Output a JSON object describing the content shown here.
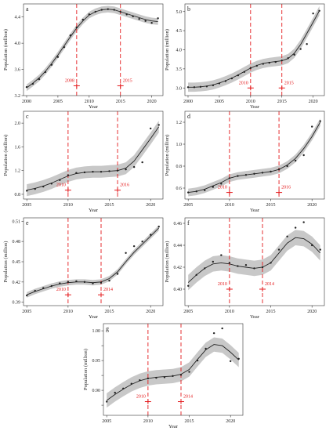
{
  "chart_data": [
    {
      "type": "line",
      "panel_label": "a",
      "xlabel": "Year",
      "ylabel": "Population (million)",
      "xlim": [
        1999.5,
        2021.8
      ],
      "ylim": [
        3.2,
        4.6
      ],
      "xticks": [
        2000,
        2005,
        2010,
        2015,
        2020
      ],
      "yticks": [
        3.2,
        3.6,
        4.0,
        4.4
      ],
      "ytick_labels": [
        "3.2",
        "3.6",
        "4.0",
        "4.4"
      ],
      "points": {
        "x": [
          2000,
          2001,
          2002,
          2003,
          2004,
          2005,
          2006,
          2007,
          2008,
          2009,
          2010,
          2011,
          2012,
          2013,
          2014,
          2015,
          2016,
          2017,
          2018,
          2019,
          2020,
          2021
        ],
        "y": [
          3.33,
          3.38,
          3.45,
          3.56,
          3.67,
          3.79,
          3.94,
          4.12,
          4.24,
          4.36,
          4.44,
          4.48,
          4.51,
          4.52,
          4.51,
          4.48,
          4.44,
          4.41,
          4.37,
          4.34,
          4.31,
          4.38
        ]
      },
      "fit": {
        "x": [
          2000,
          2001,
          2002,
          2003,
          2004,
          2005,
          2006,
          2007,
          2008,
          2009,
          2010,
          2011,
          2012,
          2013,
          2014,
          2015,
          2016,
          2017,
          2018,
          2019,
          2020,
          2021
        ],
        "y": [
          3.32,
          3.39,
          3.47,
          3.57,
          3.69,
          3.82,
          3.96,
          4.1,
          4.23,
          4.34,
          4.43,
          4.48,
          4.51,
          4.52,
          4.51,
          4.48,
          4.45,
          4.42,
          4.39,
          4.36,
          4.34,
          4.33
        ],
        "band": 0.05
      },
      "breaks": [
        {
          "year": 2008,
          "label": "2008",
          "y": 3.35
        },
        {
          "year": 2015,
          "label": "2015",
          "y": 3.35
        }
      ]
    },
    {
      "type": "line",
      "panel_label": "b",
      "xlabel": "Year",
      "ylabel": "Population (million)",
      "xlim": [
        1999.5,
        2021.8
      ],
      "ylim": [
        2.8,
        5.2
      ],
      "xticks": [
        2000,
        2005,
        2010,
        2015,
        2020
      ],
      "yticks": [
        3.0,
        3.5,
        4.0,
        4.5,
        5.0
      ],
      "ytick_labels": [
        "3.0",
        "3.5",
        "4.0",
        "4.5",
        "5.0"
      ],
      "points": {
        "x": [
          2000,
          2001,
          2002,
          2003,
          2004,
          2005,
          2006,
          2007,
          2008,
          2009,
          2010,
          2011,
          2012,
          2013,
          2014,
          2015,
          2016,
          2017,
          2018,
          2019,
          2020,
          2021
        ],
        "y": [
          3.02,
          3.02,
          3.03,
          3.04,
          3.07,
          3.12,
          3.18,
          3.25,
          3.33,
          3.42,
          3.52,
          3.58,
          3.63,
          3.66,
          3.68,
          3.72,
          3.78,
          3.87,
          4.02,
          4.15,
          4.95,
          5.02
        ]
      },
      "fit": {
        "x": [
          2000,
          2001,
          2002,
          2003,
          2004,
          2005,
          2006,
          2007,
          2008,
          2009,
          2010,
          2011,
          2012,
          2013,
          2014,
          2015,
          2016,
          2017,
          2018,
          2019,
          2020,
          2021
        ],
        "y": [
          3.02,
          3.02,
          3.03,
          3.05,
          3.08,
          3.13,
          3.19,
          3.26,
          3.34,
          3.43,
          3.52,
          3.59,
          3.64,
          3.67,
          3.69,
          3.71,
          3.77,
          3.91,
          4.14,
          4.43,
          4.72,
          5.02
        ],
        "band": 0.12
      },
      "breaks": [
        {
          "year": 2010,
          "label": "2010",
          "y": 3.0
        },
        {
          "year": 2015,
          "label": "2015",
          "y": 3.0
        }
      ]
    },
    {
      "type": "line",
      "panel_label": "c",
      "xlabel": "Year",
      "ylabel": "Population (million)",
      "xlim": [
        2004.6,
        2021.5
      ],
      "ylim": [
        0.72,
        2.2
      ],
      "xticks": [
        2005,
        2010,
        2015,
        2020
      ],
      "yticks": [
        0.8,
        1.2,
        1.6,
        2.0
      ],
      "ytick_labels": [
        "0.8",
        "1.2",
        "1.6",
        "2.0"
      ],
      "points": {
        "x": [
          2005,
          2006,
          2007,
          2008,
          2009,
          2010,
          2011,
          2012,
          2013,
          2014,
          2015,
          2016,
          2017,
          2018,
          2019,
          2020,
          2021
        ],
        "y": [
          0.86,
          0.89,
          0.93,
          0.98,
          1.04,
          1.12,
          1.16,
          1.17,
          1.18,
          1.18,
          1.19,
          1.2,
          1.22,
          1.26,
          1.34,
          1.91,
          1.97
        ]
      },
      "fit": {
        "x": [
          2005,
          2006,
          2007,
          2008,
          2009,
          2010,
          2011,
          2012,
          2013,
          2014,
          2015,
          2016,
          2017,
          2018,
          2019,
          2020,
          2021
        ],
        "y": [
          0.87,
          0.9,
          0.94,
          0.99,
          1.05,
          1.11,
          1.15,
          1.17,
          1.18,
          1.18,
          1.19,
          1.2,
          1.24,
          1.36,
          1.55,
          1.74,
          1.94
        ],
        "band": 0.1
      },
      "breaks": [
        {
          "year": 2010,
          "label": "2010",
          "y": 0.87
        },
        {
          "year": 2016,
          "label": "2016",
          "y": 0.87
        }
      ]
    },
    {
      "type": "line",
      "panel_label": "d",
      "xlabel": "Year",
      "ylabel": "Population (million)",
      "xlim": [
        2004.6,
        2021.5
      ],
      "ylim": [
        0.5,
        1.3
      ],
      "xticks": [
        2005,
        2010,
        2015,
        2020
      ],
      "yticks": [
        0.6,
        0.8,
        1.0,
        1.2
      ],
      "ytick_labels": [
        "0.6",
        "0.8",
        "1.0",
        "1.2"
      ],
      "points": {
        "x": [
          2005,
          2006,
          2007,
          2008,
          2009,
          2010,
          2011,
          2012,
          2013,
          2014,
          2015,
          2016,
          2017,
          2018,
          2019,
          2020,
          2021
        ],
        "y": [
          0.56,
          0.57,
          0.58,
          0.61,
          0.64,
          0.69,
          0.71,
          0.72,
          0.73,
          0.74,
          0.75,
          0.77,
          0.8,
          0.85,
          0.9,
          1.16,
          1.21
        ]
      },
      "fit": {
        "x": [
          2005,
          2006,
          2007,
          2008,
          2009,
          2010,
          2011,
          2012,
          2013,
          2014,
          2015,
          2016,
          2017,
          2018,
          2019,
          2020,
          2021
        ],
        "y": [
          0.56,
          0.57,
          0.59,
          0.62,
          0.65,
          0.69,
          0.71,
          0.72,
          0.73,
          0.74,
          0.75,
          0.77,
          0.81,
          0.87,
          0.96,
          1.07,
          1.2
        ],
        "band": 0.035
      },
      "breaks": [
        {
          "year": 2010,
          "label": "2010",
          "y": 0.56
        },
        {
          "year": 2016,
          "label": "2016",
          "y": 0.56
        }
      ]
    },
    {
      "type": "line",
      "panel_label": "e",
      "xlabel": "Year",
      "ylabel": "Population (million)",
      "xlim": [
        2004.6,
        2021.5
      ],
      "ylim": [
        0.385,
        0.515
      ],
      "xticks": [
        2005,
        2010,
        2015,
        2020
      ],
      "yticks": [
        0.39,
        0.42,
        0.45,
        0.48,
        0.51
      ],
      "ytick_labels": [
        "0.39",
        "0.42",
        "0.45",
        "0.48",
        "0.51"
      ],
      "points": {
        "x": [
          2005,
          2006,
          2007,
          2008,
          2009,
          2010,
          2011,
          2012,
          2013,
          2014,
          2015,
          2016,
          2017,
          2018,
          2019,
          2020,
          2021
        ],
        "y": [
          0.4,
          0.407,
          0.411,
          0.414,
          0.418,
          0.42,
          0.421,
          0.42,
          0.418,
          0.419,
          0.422,
          0.432,
          0.463,
          0.473,
          0.48,
          0.49,
          0.502
        ]
      },
      "fit": {
        "x": [
          2005,
          2006,
          2007,
          2008,
          2009,
          2010,
          2011,
          2012,
          2013,
          2014,
          2015,
          2016,
          2017,
          2018,
          2019,
          2020,
          2021
        ],
        "y": [
          0.401,
          0.406,
          0.41,
          0.414,
          0.417,
          0.419,
          0.42,
          0.42,
          0.419,
          0.42,
          0.425,
          0.435,
          0.45,
          0.464,
          0.476,
          0.488,
          0.5
        ],
        "band": 0.004
      },
      "breaks": [
        {
          "year": 2010,
          "label": "2010",
          "y": 0.401
        },
        {
          "year": 2014,
          "label": "2014",
          "y": 0.401
        }
      ]
    },
    {
      "type": "line",
      "panel_label": "f",
      "xlabel": "Year",
      "ylabel": "Population (million)",
      "xlim": [
        2004.6,
        2021.5
      ],
      "ylim": [
        0.385,
        0.465
      ],
      "xticks": [
        2005,
        2010,
        2015,
        2020
      ],
      "yticks": [
        0.4,
        0.42,
        0.44,
        0.46
      ],
      "ytick_labels": [
        "0.40",
        "0.42",
        "0.44",
        "0.46"
      ],
      "points": {
        "x": [
          2005,
          2006,
          2007,
          2008,
          2009,
          2010,
          2011,
          2012,
          2013,
          2014,
          2015,
          2016,
          2017,
          2018,
          2019,
          2020,
          2021
        ],
        "y": [
          0.403,
          0.413,
          0.419,
          0.425,
          0.431,
          0.424,
          0.421,
          0.422,
          0.419,
          0.42,
          0.424,
          0.436,
          0.448,
          0.456,
          0.461,
          0.44,
          0.436
        ]
      },
      "fit": {
        "x": [
          2005,
          2006,
          2007,
          2008,
          2009,
          2010,
          2011,
          2012,
          2013,
          2014,
          2015,
          2016,
          2017,
          2018,
          2019,
          2020,
          2021
        ],
        "y": [
          0.406,
          0.413,
          0.419,
          0.423,
          0.424,
          0.423,
          0.421,
          0.42,
          0.419,
          0.42,
          0.424,
          0.433,
          0.442,
          0.447,
          0.446,
          0.441,
          0.433
        ],
        "band": 0.007
      },
      "breaks": [
        {
          "year": 2010,
          "label": "2010",
          "y": 0.4
        },
        {
          "year": 2014,
          "label": "2014",
          "y": 0.4
        }
      ]
    },
    {
      "type": "line",
      "panel_label": "g",
      "xlabel": "Year",
      "ylabel": "Population (million)",
      "xlim": [
        2004.6,
        2021.5
      ],
      "ylim": [
        0.858,
        1.012
      ],
      "xticks": [
        2005,
        2010,
        2015,
        2020
      ],
      "yticks": [
        0.875,
        0.9,
        0.925,
        0.95,
        0.975,
        1.0
      ],
      "ytick_labels": [
        "",
        "0.90",
        "",
        "0.95",
        "",
        "1.00"
      ],
      "points": {
        "x": [
          2005,
          2006,
          2007,
          2008,
          2009,
          2010,
          2011,
          2012,
          2013,
          2014,
          2015,
          2016,
          2017,
          2018,
          2019,
          2020,
          2021
        ],
        "y": [
          0.881,
          0.896,
          0.903,
          0.911,
          0.917,
          0.92,
          0.921,
          0.922,
          0.924,
          0.926,
          0.931,
          0.95,
          0.97,
          0.996,
          1.004,
          0.949,
          0.953
        ]
      },
      "fit": {
        "x": [
          2005,
          2006,
          2007,
          2008,
          2009,
          2010,
          2011,
          2012,
          2013,
          2014,
          2015,
          2016,
          2017,
          2018,
          2019,
          2020,
          2021
        ],
        "y": [
          0.883,
          0.893,
          0.902,
          0.91,
          0.916,
          0.92,
          0.922,
          0.923,
          0.924,
          0.927,
          0.935,
          0.952,
          0.968,
          0.977,
          0.975,
          0.964,
          0.951
        ],
        "band": 0.012
      },
      "breaks": [
        {
          "year": 2010,
          "label": "2010",
          "y": 0.881
        },
        {
          "year": 2014,
          "label": "2014",
          "y": 0.881
        }
      ]
    }
  ],
  "colors": {
    "break_line": "#e41a1c",
    "band": "#c8c8c8",
    "fit_line": "#222222",
    "points": "#222222",
    "axis": "#333333",
    "text": "#222222"
  }
}
